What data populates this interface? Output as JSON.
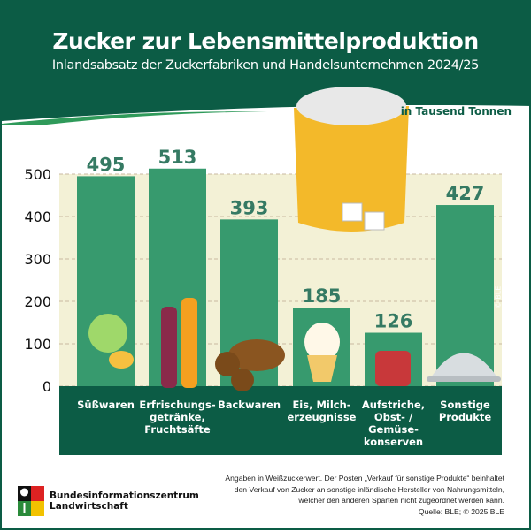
{
  "header": {
    "title": "Zucker zur Lebensmittelproduktion",
    "subtitle": "Inlandsabsatz der Zuckerfabriken und Handelsunternehmen 2024/25",
    "unit": "in Tausend Tonnen"
  },
  "colors": {
    "header": "#0c5c45",
    "bar": "#379a6e",
    "value_label": "#357a63",
    "plot_bg": "#f3f1d6",
    "category_band": "#0c5c45"
  },
  "chart_data": {
    "type": "bar",
    "title": "Zucker zur Lebensmittelproduktion",
    "subtitle": "Inlandsabsatz der Zuckerfabriken und Handelsunternehmen 2024/25",
    "ylabel": "in Tausend Tonnen",
    "categories": [
      [
        "Süßwaren"
      ],
      [
        "Erfrischungs-",
        "getränke,",
        "Fruchtsäfte"
      ],
      [
        "Backwaren"
      ],
      [
        "Eis, Milch-",
        "erzeugnisse"
      ],
      [
        "Aufstriche,",
        "Obst- /",
        "Gemüse-",
        "konserven"
      ],
      [
        "Sonstige",
        "Produkte"
      ]
    ],
    "values": [
      495,
      513,
      393,
      185,
      126,
      427
    ],
    "yticks": [
      0,
      100,
      200,
      300,
      400,
      500
    ],
    "ylim": [
      0,
      500
    ],
    "grid": true
  },
  "footer": {
    "note": [
      "Angaben in Weißzuckerwert. Der Posten „Verkauf für sonstige Produkte“ beinhaltet",
      "den Verkauf von Zucker an sonstige inländische Hersteller von Nahrungsmitteln,",
      "welcher den anderen Sparten nicht zugeordnet werden kann.",
      "Quelle: BLE; © 2025 BLE"
    ],
    "logo": [
      "Bundesinformationszentrum",
      "Landwirtschaft"
    ],
    "watermark": "© BLE"
  }
}
